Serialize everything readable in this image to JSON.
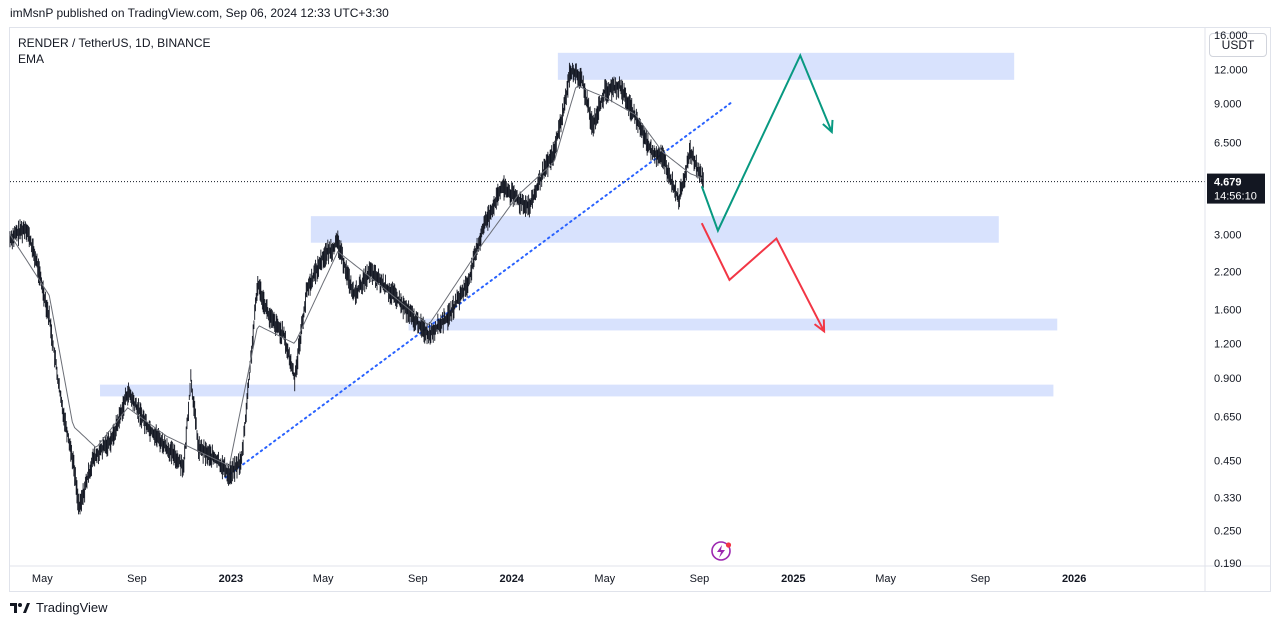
{
  "header": {
    "published_text": "imMsnP published on TradingView.com, Sep 06, 2024 12:33 UTC+3:30"
  },
  "symbol": {
    "line1": "RENDER / TetherUS, 1D, BINANCE",
    "line2": "EMA"
  },
  "currency_button": "USDT",
  "price_badge": {
    "price": "4.679",
    "countdown": "14:56:10"
  },
  "footer": {
    "brand": "TradingView"
  },
  "colors": {
    "candles": "#131722",
    "ema": "#6b6e76",
    "zone": "#d6e0fd",
    "trendline": "#2962ff",
    "bull_arrow": "#089981",
    "bear_arrow": "#f23645",
    "logo_purple": "#9c27b0"
  },
  "chart_data": {
    "type": "line",
    "title": "RENDER / TetherUS, 1D, BINANCE",
    "y_scale": "log",
    "y_ticks": [
      "16.000",
      "12.000",
      "9.000",
      "6.500",
      "4.679",
      "3.000",
      "2.200",
      "1.600",
      "1.200",
      "0.900",
      "0.650",
      "0.450",
      "0.330",
      "0.250",
      "0.190"
    ],
    "y_tick_values": [
      16,
      12,
      9,
      6.5,
      3,
      2.2,
      1.6,
      1.2,
      0.9,
      0.65,
      0.45,
      0.33,
      0.25,
      0.19
    ],
    "ylim": [
      0.19,
      17
    ],
    "x_ticks": [
      "May",
      "Sep",
      "2023",
      "May",
      "Sep",
      "2024",
      "May",
      "Sep",
      "2025",
      "May",
      "Sep",
      "2026"
    ],
    "x_tick_dates": [
      "2022-05-01",
      "2022-09-01",
      "2023-01-01",
      "2023-05-01",
      "2023-09-01",
      "2024-01-01",
      "2024-05-01",
      "2024-09-01",
      "2025-01-01",
      "2025-05-01",
      "2025-09-01",
      "2026-01-01"
    ],
    "xlim": [
      "2022-03-20",
      "2026-06-20"
    ],
    "series": [
      {
        "name": "RENDER",
        "dates": [
          "2022-03-20",
          "2022-04-10",
          "2022-04-25",
          "2022-05-10",
          "2022-05-25",
          "2022-06-10",
          "2022-06-18",
          "2022-07-05",
          "2022-08-01",
          "2022-08-20",
          "2022-09-15",
          "2022-10-10",
          "2022-11-01",
          "2022-11-10",
          "2022-11-20",
          "2022-12-15",
          "2022-12-30",
          "2023-01-15",
          "2023-02-05",
          "2023-02-20",
          "2023-03-10",
          "2023-03-25",
          "2023-04-10",
          "2023-05-01",
          "2023-05-20",
          "2023-06-10",
          "2023-07-01",
          "2023-08-01",
          "2023-08-25",
          "2023-09-15",
          "2023-10-10",
          "2023-11-05",
          "2023-11-25",
          "2023-12-20",
          "2024-01-10",
          "2024-01-25",
          "2024-02-10",
          "2024-02-25",
          "2024-03-10",
          "2024-03-17",
          "2024-04-01",
          "2024-04-15",
          "2024-05-01",
          "2024-05-20",
          "2024-06-10",
          "2024-07-01",
          "2024-07-15",
          "2024-08-05",
          "2024-08-20",
          "2024-09-06"
        ],
        "values": [
          2.9,
          3.2,
          2.3,
          1.5,
          0.75,
          0.45,
          0.3,
          0.45,
          0.55,
          0.8,
          0.6,
          0.5,
          0.43,
          0.9,
          0.5,
          0.45,
          0.4,
          0.45,
          2.0,
          1.5,
          1.3,
          0.9,
          1.9,
          2.5,
          2.8,
          1.8,
          2.2,
          1.8,
          1.5,
          1.3,
          1.5,
          2.0,
          3.2,
          4.5,
          4.0,
          3.8,
          5.0,
          6.0,
          9.0,
          12.0,
          11.0,
          7.5,
          10.0,
          10.5,
          8.0,
          6.0,
          5.8,
          4.0,
          6.0,
          4.679
        ]
      },
      {
        "name": "EMA",
        "dates": [
          "2022-03-20",
          "2022-05-10",
          "2022-06-10",
          "2022-07-10",
          "2022-08-20",
          "2022-10-10",
          "2022-12-30",
          "2023-02-05",
          "2023-03-25",
          "2023-05-20",
          "2023-07-01",
          "2023-09-15",
          "2023-11-25",
          "2024-01-10",
          "2024-02-25",
          "2024-03-25",
          "2024-05-01",
          "2024-06-10",
          "2024-07-15",
          "2024-08-20",
          "2024-09-06"
        ],
        "values": [
          3.0,
          1.8,
          0.6,
          0.5,
          0.7,
          0.55,
          0.43,
          1.4,
          1.2,
          2.6,
          2.1,
          1.4,
          2.8,
          4.2,
          5.5,
          10.5,
          9.5,
          8.2,
          6.0,
          5.0,
          4.8
        ]
      }
    ],
    "annotations": {
      "zones": [
        {
          "from": "2024-03-01",
          "to": "2025-10-15",
          "low": 11.0,
          "high": 13.8
        },
        {
          "from": "2023-04-15",
          "to": "2025-09-25",
          "low": 2.8,
          "high": 3.5
        },
        {
          "from": "2023-08-20",
          "to": "2025-12-10",
          "low": 1.34,
          "high": 1.48
        },
        {
          "from": "2022-07-15",
          "to": "2025-12-05",
          "low": 0.77,
          "high": 0.85
        }
      ],
      "trendline": {
        "from": [
          "2022-12-25",
          0.39
        ],
        "to": [
          "2024-10-15",
          9.2
        ],
        "style": "dotted"
      },
      "bull_path": {
        "dates": [
          "2024-09-04",
          "2024-09-25",
          "2025-01-10",
          "2025-02-20"
        ],
        "values": [
          4.5,
          3.1,
          13.5,
          7.1
        ]
      },
      "bear_path": {
        "dates": [
          "2024-09-04",
          "2024-10-10",
          "2024-12-10",
          "2025-02-10"
        ],
        "values": [
          3.3,
          2.05,
          2.9,
          1.33
        ]
      },
      "last_price": 4.679
    }
  }
}
